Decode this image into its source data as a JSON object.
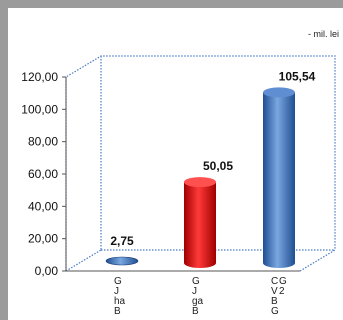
{
  "unit_label": "- mil. lei",
  "chart_data": {
    "type": "bar",
    "title": "",
    "xlabel": "",
    "ylabel": "",
    "categories": [
      "G\nJ\nha\nB",
      "G\nJ\nga\nB",
      "C\nV\nB\nG\nG\n2"
    ],
    "series": [
      {
        "values": [
          2.75,
          50.05,
          105.54
        ]
      }
    ],
    "data_labels": [
      "2,75",
      "50,05",
      "105,54"
    ],
    "ylim": [
      0,
      120
    ],
    "yticks": [
      "0,00",
      "20,00",
      "40,00",
      "60,00",
      "80,00",
      "100,00",
      "120,00"
    ],
    "bar_colors": [
      "#3a6fb8",
      "#e01010",
      "#3a6fb8"
    ],
    "grid": false,
    "legend": "none"
  }
}
